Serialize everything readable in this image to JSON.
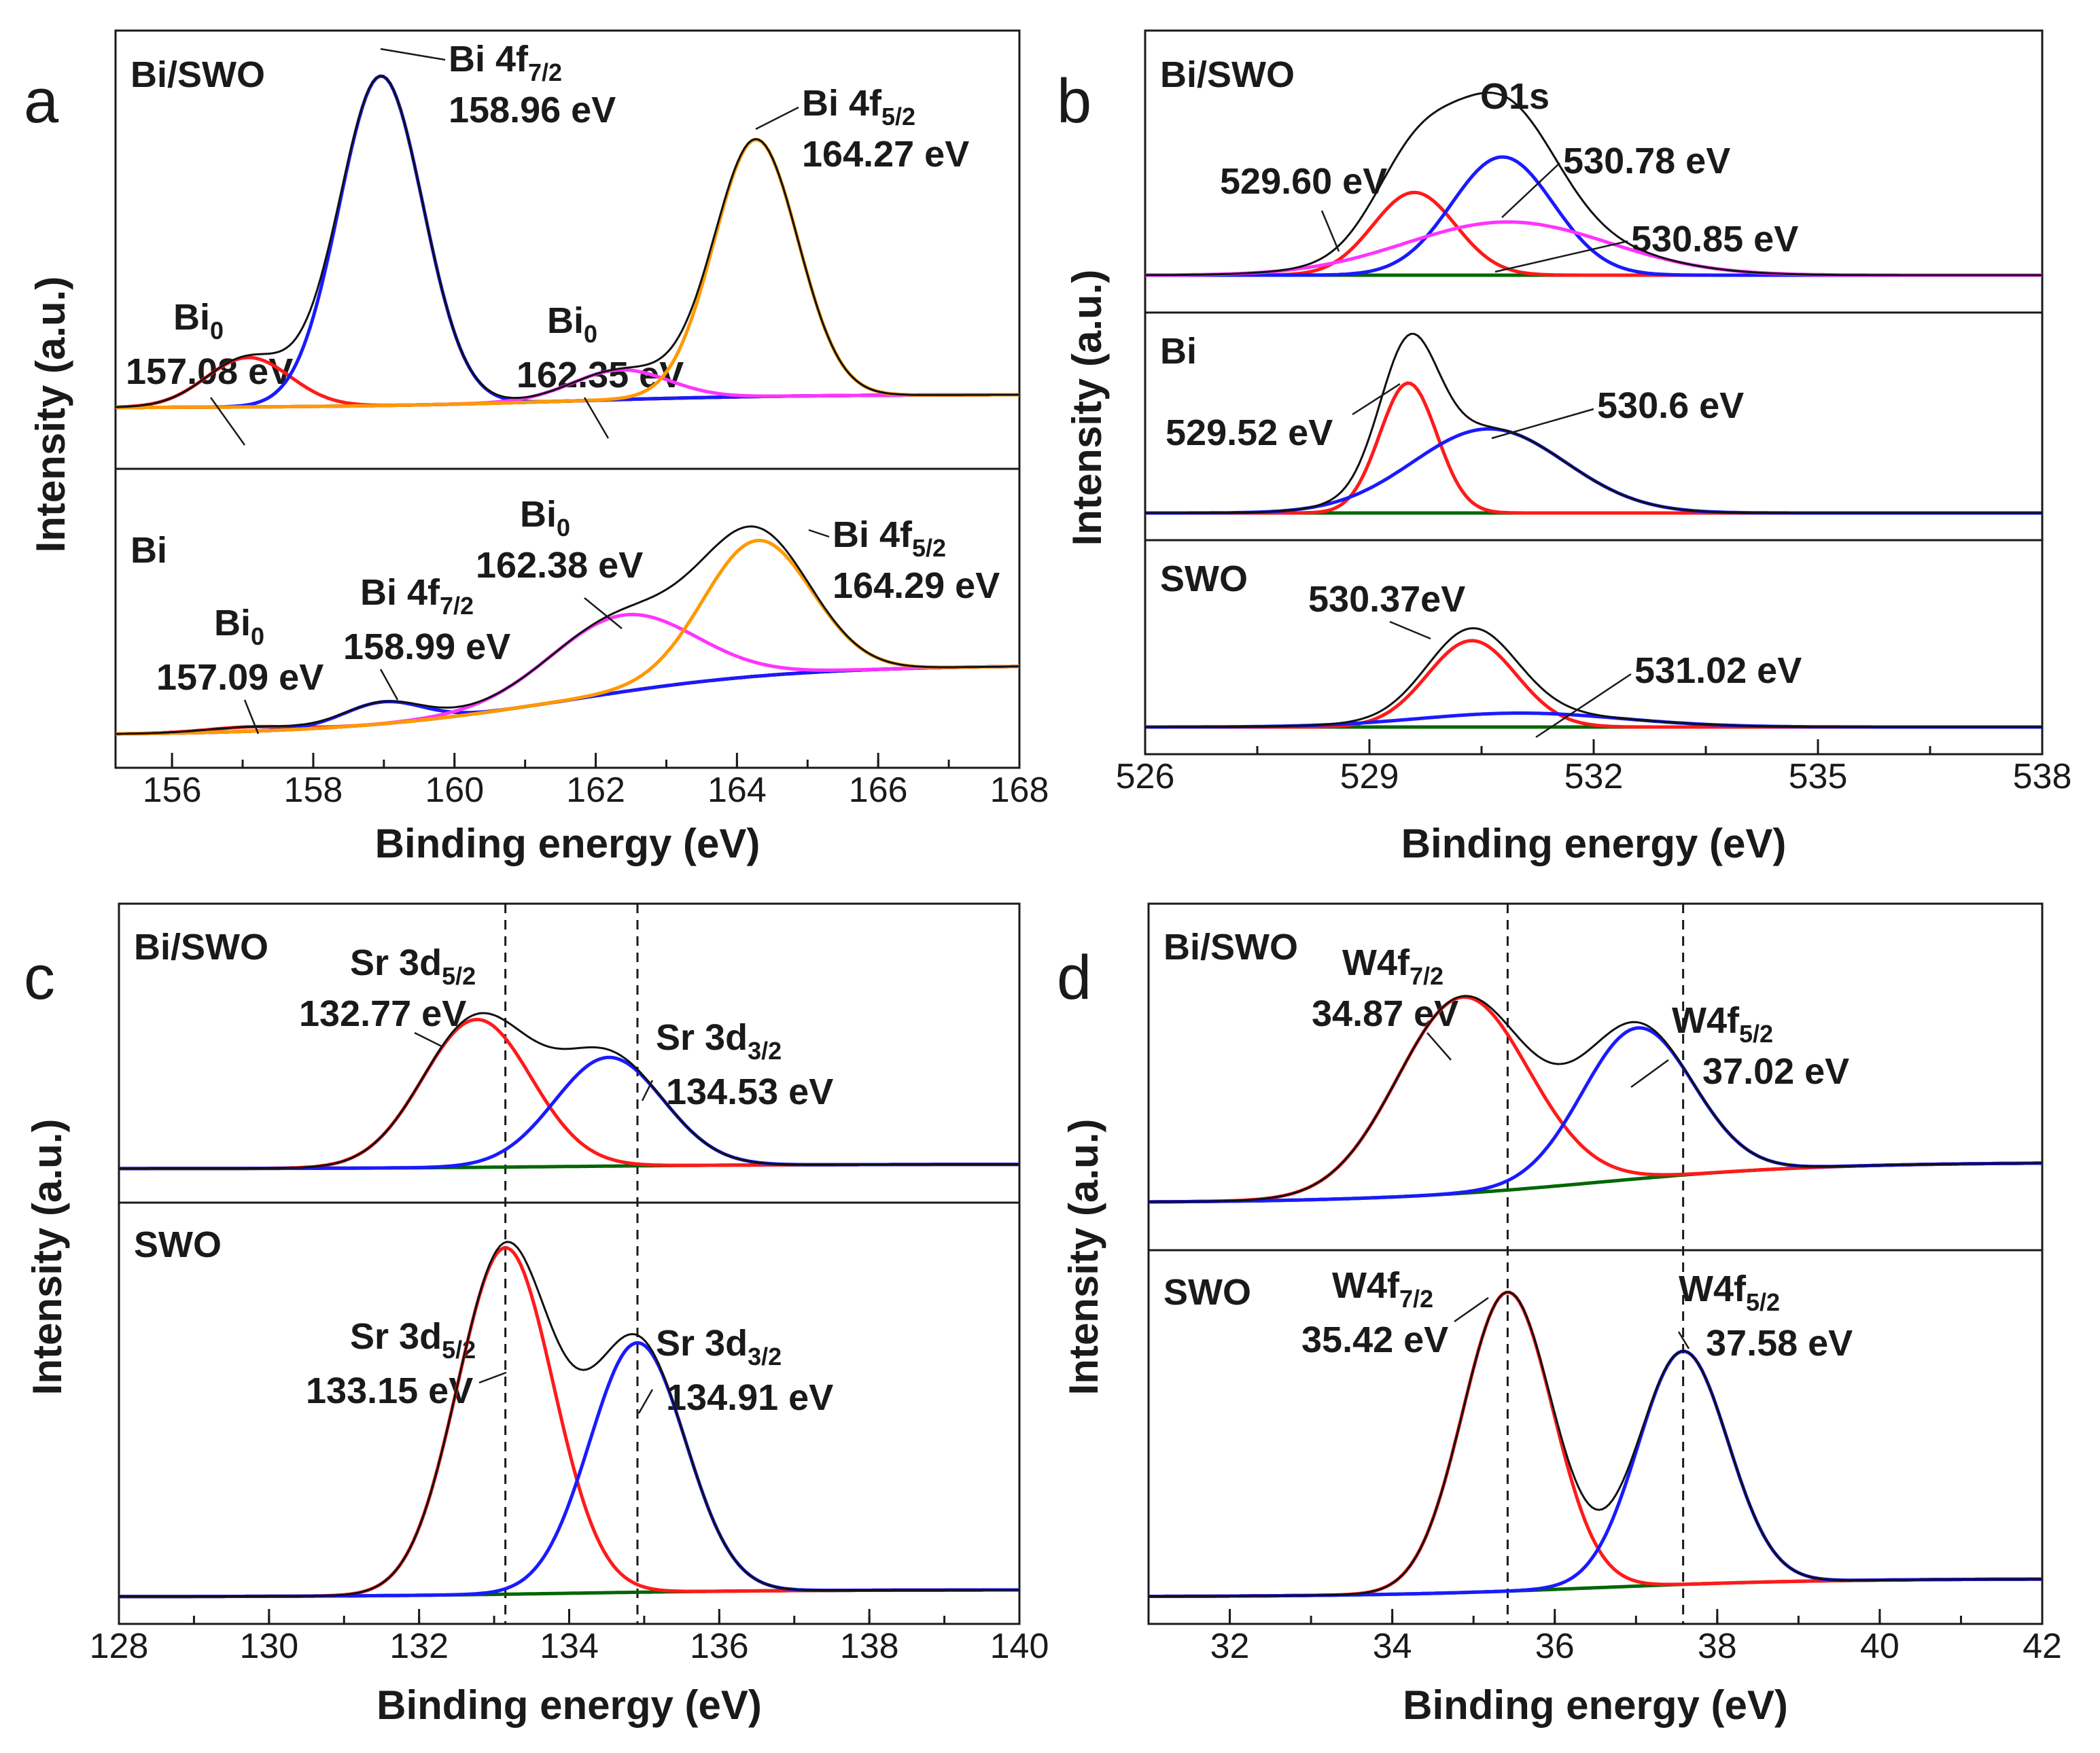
{
  "colors": {
    "envelope": "#111111",
    "red": "#ff1a1a",
    "blue": "#1a1aff",
    "orange": "#ff9900",
    "magenta": "#ff33ff",
    "background": "#006600",
    "navy": "#1a1a6e",
    "maroon": "#5a0000"
  },
  "chart_data": [
    {
      "panel": "a",
      "type": "line",
      "xlabel": "Binding energy (eV)",
      "ylabel": "Intensity (a.u.)",
      "xlim": [
        155.2,
        168
      ],
      "xticks": [
        156,
        158,
        160,
        162,
        164,
        166,
        168
      ],
      "subpanels": [
        {
          "sample": "Bi/SWO",
          "peaks": [
            {
              "center": 157.08,
              "height": 0.15,
              "fwhm": 1.4,
              "color": "red"
            },
            {
              "center": 158.96,
              "height": 1.0,
              "fwhm": 1.4,
              "color": "blue"
            },
            {
              "center": 162.35,
              "height": 0.09,
              "fwhm": 1.6,
              "color": "magenta"
            },
            {
              "center": 164.27,
              "height": 0.78,
              "fwhm": 1.4,
              "color": "orange"
            }
          ],
          "background": {
            "start": 0.0,
            "end": 0.04
          },
          "annotations": [
            {
              "line1": "Bi 4f7/2",
              "line2": "158.96 eV",
              "anchor": 158.96
            },
            {
              "line1": "Bi 4f5/2",
              "line2": "164.27 eV",
              "anchor": 164.27
            },
            {
              "line1": "Bi0",
              "line2": "157.08 eV",
              "anchor": 157.08
            },
            {
              "line1": "Bi0",
              "line2": "162.35 eV",
              "anchor": 162.35
            }
          ]
        },
        {
          "sample": "Bi",
          "peaks": [
            {
              "center": 157.09,
              "height": 0.02,
              "fwhm": 1.4,
              "color": "red"
            },
            {
              "center": 158.99,
              "height": 0.1,
              "fwhm": 1.3,
              "color": "blue"
            },
            {
              "center": 162.38,
              "height": 0.35,
              "fwhm": 2.4,
              "color": "magenta"
            },
            {
              "center": 164.29,
              "height": 0.62,
              "fwhm": 1.8,
              "color": "orange"
            }
          ],
          "background": {
            "start": 0.0,
            "end": 0.32
          },
          "annotations": [
            {
              "line1": "Bi0",
              "line2": "157.09 eV",
              "anchor": 157.09
            },
            {
              "line1": "Bi 4f7/2",
              "line2": "158.99 eV",
              "anchor": 158.99
            },
            {
              "line1": "Bi0",
              "line2": "162.38 eV",
              "anchor": 162.38
            },
            {
              "line1": "Bi 4f5/2",
              "line2": "164.29 eV",
              "anchor": 164.29
            }
          ]
        }
      ]
    },
    {
      "panel": "b",
      "type": "line",
      "title": "O1s",
      "xlabel": "Binding energy (eV)",
      "ylabel": "Intensity (a.u.)",
      "xlim": [
        526,
        538
      ],
      "xticks": [
        526,
        529,
        532,
        535,
        538
      ],
      "subpanels": [
        {
          "sample": "Bi/SWO",
          "peaks": [
            {
              "center": 529.6,
              "height": 0.42,
              "fwhm": 1.3,
              "color": "red"
            },
            {
              "center": 530.78,
              "height": 0.6,
              "fwhm": 1.6,
              "color": "blue"
            },
            {
              "center": 530.85,
              "height": 0.27,
              "fwhm": 3.2,
              "color": "magenta"
            }
          ],
          "background": {
            "start": 0.0,
            "end": 0.0
          },
          "annotations": [
            {
              "line1": "529.60 eV",
              "anchor": 529.6
            },
            {
              "line1": "530.78 eV",
              "anchor": 530.78
            },
            {
              "line1": "530.85 eV",
              "anchor": 530.85
            }
          ]
        },
        {
          "sample": "Bi",
          "peaks": [
            {
              "center": 529.52,
              "height": 0.85,
              "fwhm": 0.9,
              "color": "red"
            },
            {
              "center": 530.6,
              "height": 0.55,
              "fwhm": 2.4,
              "color": "blue"
            }
          ],
          "background": {
            "start": 0.0,
            "end": 0.0
          },
          "annotations": [
            {
              "line1": "529.52 eV",
              "anchor": 529.52
            },
            {
              "line1": "530.6 eV",
              "anchor": 530.6
            }
          ]
        },
        {
          "sample": "SWO",
          "peaks": [
            {
              "center": 530.37,
              "height": 0.62,
              "fwhm": 1.4,
              "color": "red"
            },
            {
              "center": 531.02,
              "height": 0.1,
              "fwhm": 3.2,
              "color": "blue"
            }
          ],
          "background": {
            "start": 0.0,
            "end": 0.0
          },
          "annotations": [
            {
              "line1": "530.37eV",
              "anchor": 530.37
            },
            {
              "line1": "531.02 eV",
              "anchor": 531.02
            }
          ]
        }
      ]
    },
    {
      "panel": "c",
      "type": "line",
      "xlabel": "Binding energy (eV)",
      "ylabel": "Intensity (a.u.)",
      "xlim": [
        128,
        140
      ],
      "xticks": [
        128,
        130,
        132,
        134,
        136,
        138,
        140
      ],
      "reference_lines": [
        133.15,
        134.91
      ],
      "subpanels": [
        {
          "sample": "Bi/SWO",
          "peaks": [
            {
              "center": 132.77,
              "height": 0.68,
              "fwhm": 1.7,
              "color": "red"
            },
            {
              "center": 134.53,
              "height": 0.5,
              "fwhm": 1.7,
              "color": "blue"
            }
          ],
          "background": {
            "start": 0.0,
            "end": 0.02
          },
          "annotations": [
            {
              "line1": "Sr 3d5/2",
              "line2": "132.77 eV",
              "anchor": 132.77
            },
            {
              "line1": "Sr 3d3/2",
              "line2": "134.53 eV",
              "anchor": 134.53
            }
          ]
        },
        {
          "sample": "SWO",
          "peaks": [
            {
              "center": 133.15,
              "height": 1.0,
              "fwhm": 1.5,
              "color": "red"
            },
            {
              "center": 134.91,
              "height": 0.72,
              "fwhm": 1.5,
              "color": "blue"
            }
          ],
          "background": {
            "start": 0.0,
            "end": 0.02
          },
          "annotations": [
            {
              "line1": "Sr 3d5/2",
              "line2": "133.15 eV",
              "anchor": 133.15
            },
            {
              "line1": "Sr 3d3/2",
              "line2": "134.91 eV",
              "anchor": 134.91
            }
          ]
        }
      ]
    },
    {
      "panel": "d",
      "type": "line",
      "xlabel": "Binding  energy (eV)",
      "ylabel": "Intensity (a.u.)",
      "xlim": [
        31,
        42
      ],
      "xticks": [
        32,
        34,
        36,
        38,
        40,
        42
      ],
      "reference_lines": [
        35.42,
        37.58
      ],
      "subpanels": [
        {
          "sample": "Bi/SWO",
          "peaks": [
            {
              "center": 34.87,
              "height": 0.78,
              "fwhm": 1.9,
              "color": "red"
            },
            {
              "center": 37.02,
              "height": 0.6,
              "fwhm": 1.6,
              "color": "blue"
            }
          ],
          "background": {
            "start": 0.0,
            "end": 0.16
          },
          "annotations": [
            {
              "line1": "W4f7/2",
              "line2": "34.87 eV",
              "anchor": 34.87
            },
            {
              "line1": "W4f5/2",
              "line2": "37.02 eV",
              "anchor": 37.02
            }
          ]
        },
        {
          "sample": "SWO",
          "peaks": [
            {
              "center": 35.42,
              "height": 1.0,
              "fwhm": 1.3,
              "color": "red"
            },
            {
              "center": 37.58,
              "height": 0.78,
              "fwhm": 1.3,
              "color": "blue"
            }
          ],
          "background": {
            "start": 0.0,
            "end": 0.06
          },
          "annotations": [
            {
              "line1": "W4f7/2",
              "line2": "35.42 eV",
              "anchor": 35.42
            },
            {
              "line1": "W4f5/2",
              "line2": "37.58 eV",
              "anchor": 37.58
            }
          ]
        }
      ]
    }
  ]
}
